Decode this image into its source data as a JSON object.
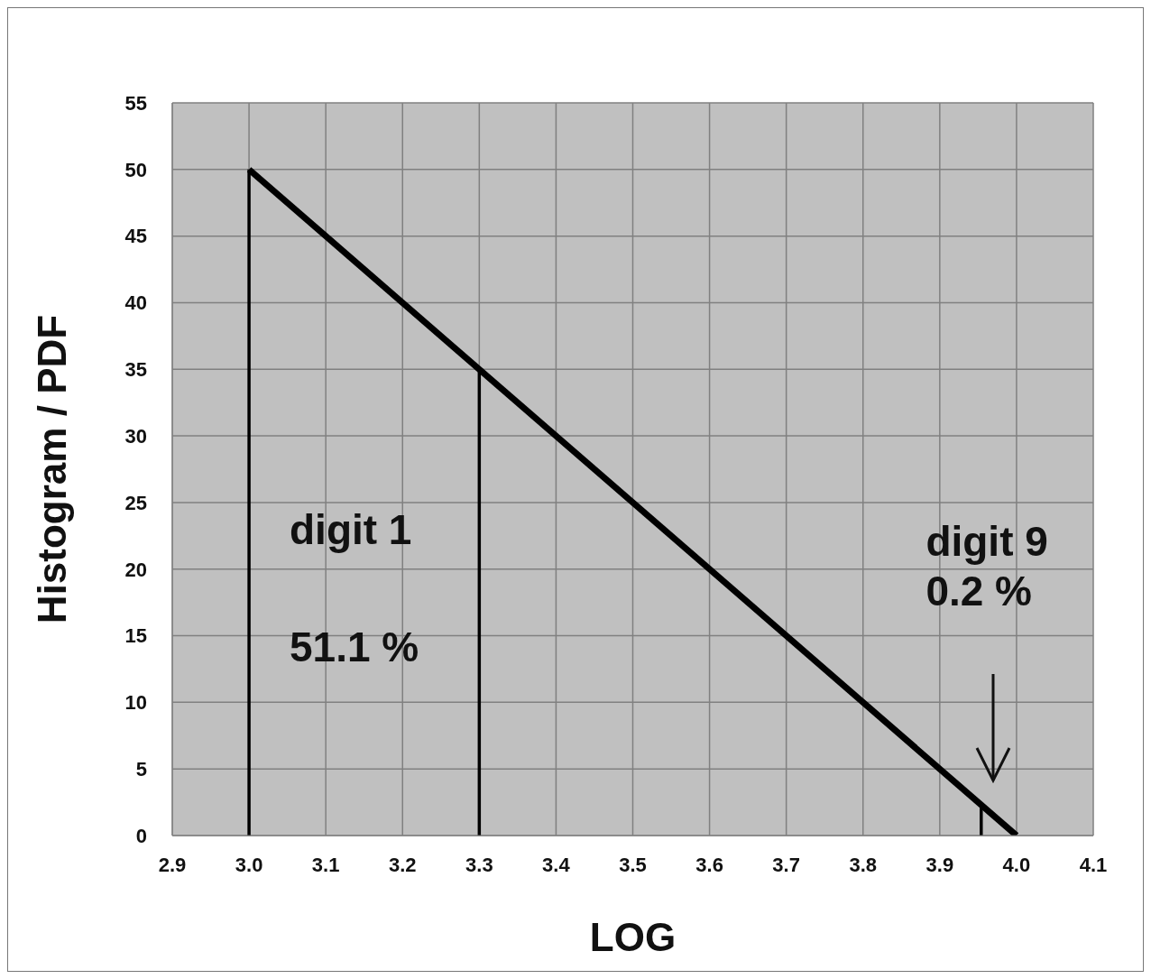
{
  "chart_data": {
    "type": "line",
    "xlabel": "LOG",
    "ylabel": "Histogram / PDF",
    "xlim": [
      2.9,
      4.1
    ],
    "xticks": [
      {
        "value": 2.9,
        "label": "2.9"
      },
      {
        "value": 3.0,
        "label": "3.0"
      },
      {
        "value": 3.1,
        "label": "3.1"
      },
      {
        "value": 3.2,
        "label": "3.2"
      },
      {
        "value": 3.3,
        "label": "3.3"
      },
      {
        "value": 3.4,
        "label": "3.4"
      },
      {
        "value": 3.5,
        "label": "3.5"
      },
      {
        "value": 3.6,
        "label": "3.6"
      },
      {
        "value": 3.7,
        "label": "3.7"
      },
      {
        "value": 3.8,
        "label": "3.8"
      },
      {
        "value": 3.9,
        "label": "3.9"
      },
      {
        "value": 4.0,
        "label": "4.0"
      },
      {
        "value": 4.1,
        "label": "4.1"
      }
    ],
    "ylim": [
      0,
      55
    ],
    "yticks": [
      0,
      5,
      10,
      15,
      20,
      25,
      30,
      35,
      40,
      45,
      50,
      55
    ],
    "grid": true,
    "marker": "none",
    "line_style": "solid",
    "series": [
      {
        "color": "#000000",
        "x": [
          3.0,
          4.0
        ],
        "values": [
          50,
          0
        ]
      },
      {
        "color": "#000000",
        "x": [
          3.0,
          3.0
        ],
        "values": [
          0,
          50
        ]
      },
      {
        "color": "#000000",
        "x": [
          3.3,
          3.3
        ],
        "values": [
          0,
          35
        ]
      },
      {
        "color": "#000000",
        "x": [
          3.954,
          3.954
        ],
        "values": [
          0,
          2.3
        ]
      }
    ],
    "annotations": [
      "digit 1",
      "51.1 %",
      "digit 9",
      "0.2 %"
    ]
  }
}
